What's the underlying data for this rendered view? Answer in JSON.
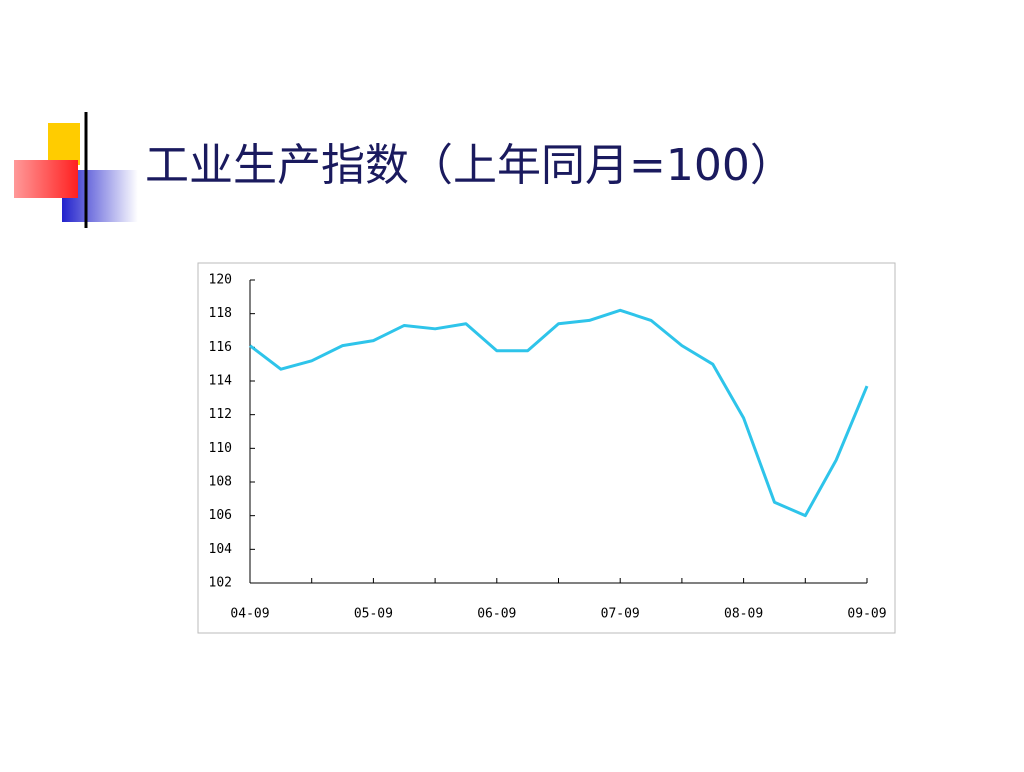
{
  "chart_data": {
    "type": "line",
    "title": "工业生产指数（上年同月=100）",
    "categories": [
      "04-09",
      null,
      null,
      null,
      "05-09",
      null,
      null,
      null,
      "06-09",
      null,
      null,
      null,
      "07-09",
      null,
      null,
      null,
      "08-09",
      null,
      null,
      null,
      "09-09"
    ],
    "values": [
      116.1,
      114.7,
      115.2,
      116.1,
      116.4,
      117.3,
      117.1,
      117.4,
      115.8,
      115.8,
      117.4,
      117.6,
      118.2,
      117.6,
      116.1,
      115.0,
      111.8,
      106.8,
      106.0,
      109.3,
      113.7
    ],
    "color": "#2ec4ea",
    "ylim": [
      102,
      120
    ],
    "yticks": [
      102,
      104,
      106,
      108,
      110,
      112,
      114,
      116,
      118,
      120
    ],
    "grid": false
  }
}
